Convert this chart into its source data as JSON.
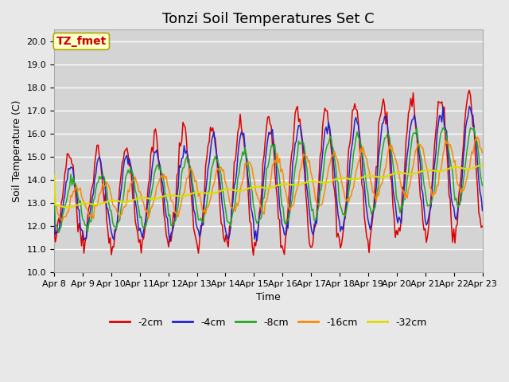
{
  "title": "Tonzi Soil Temperatures Set C",
  "xlabel": "Time",
  "ylabel": "Soil Temperature (C)",
  "annotation": "TZ_fmet",
  "ylim": [
    10.0,
    20.5
  ],
  "yticks": [
    10.0,
    11.0,
    12.0,
    13.0,
    14.0,
    15.0,
    16.0,
    17.0,
    18.0,
    19.0,
    20.0
  ],
  "x_labels": [
    "Apr 8",
    "Apr 9",
    "Apr 10",
    "Apr 11",
    "Apr 12",
    "Apr 13",
    "Apr 14",
    "Apr 15",
    "Apr 16",
    "Apr 17",
    "Apr 18",
    "Apr 19",
    "Apr 20",
    "Apr 21",
    "Apr 22",
    "Apr 23"
  ],
  "series_names": [
    "-2cm",
    "-4cm",
    "-8cm",
    "-16cm",
    "-32cm"
  ],
  "series_colors": [
    "#dd0000",
    "#2222cc",
    "#22aa22",
    "#ff8800",
    "#dddd00"
  ],
  "background_color": "#e8e8e8",
  "plot_bg_color": "#d4d4d4",
  "grid_color": "#ffffff",
  "title_fontsize": 13,
  "label_fontsize": 9,
  "tick_fontsize": 8,
  "legend_fontsize": 9,
  "annotation_bg": "#ffffcc",
  "annotation_fg": "#cc0000",
  "annotation_border": "#aaaa00",
  "figsize": [
    6.4,
    4.8
  ],
  "dpi": 100
}
